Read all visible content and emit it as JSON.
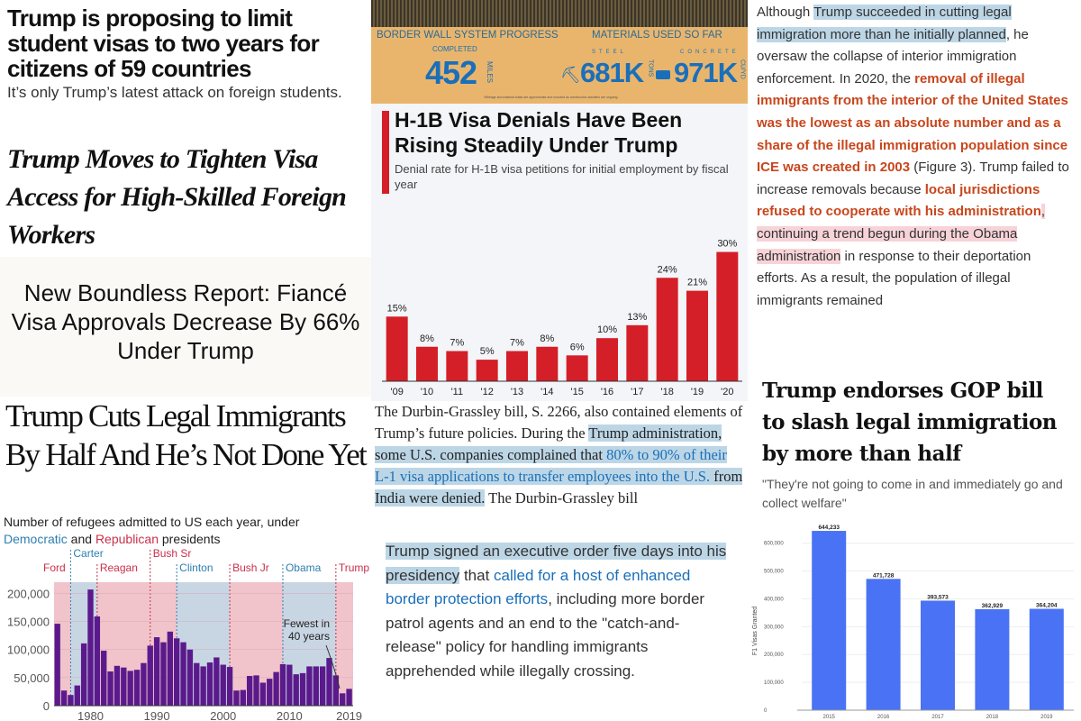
{
  "student_visas": {
    "headline": "Trump is proposing to limit student visas to two years for citizens of 59 countries",
    "sub": "It’s only Trump’s latest attack on foreign students."
  },
  "nyt": {
    "headline": "Trump Moves to Tighten Visa Access for High-Skilled Foreign Workers"
  },
  "boundless": {
    "headline": "New Boundless Report: Fiancé Visa Approvals Decrease By 66% Under Trump"
  },
  "cuts": {
    "headline": "Trump Cuts Legal Immigrants By Half And He’s Not Done Yet"
  },
  "border_wall": {
    "title": "BORDER WALL SYSTEM PROGRESS",
    "completed_label": "COMPLETED",
    "completed": "452",
    "miles": "MILES",
    "materials": "MATERIALS USED SO FAR",
    "steel_label": "STEEL",
    "steel": "681K",
    "tons": "TONS",
    "concrete_label": "CONCRETE",
    "concrete": "971K",
    "cuyd": "CU/YD",
    "footnote": "*Mileage and material totals are approximate and rounded as construction activities are ongoing."
  },
  "h1b": {
    "title": "H-1B Visa Denials Have Been Rising Steadily Under Trump",
    "subtitle": "Denial rate for H-1B visa petitions for initial employment by fiscal year"
  },
  "durbin": [
    {
      "t": "The Durbin-Grassley bill, S. 2266, also contained elements of Trump’s future policies. During the "
    },
    {
      "t": "Trump administration, some U.S. companies complained that ",
      "c": "hl"
    },
    {
      "t": "80% to 90% of their L-1 visa applications to transfer employees into the U.S.",
      "c": "hl lk"
    },
    {
      "t": " from India",
      "c": "hl"
    },
    {
      "t": " were denied.",
      "c": "hl"
    },
    {
      "t": " The Durbin-Grassley bill"
    }
  ],
  "eo": [
    {
      "t": "Trump signed an executive order five days into his presidency",
      "c": "hl"
    },
    {
      "t": " that "
    },
    {
      "t": "called for a host of enhanced border protection efforts",
      "c": "lk"
    },
    {
      "t": ", including more border patrol agents and an end to the \"catch-and-release\" policy for handling immigrants apprehended while illegally crossing."
    }
  ],
  "interior": [
    {
      "t": "Although "
    },
    {
      "t": "Trump succeeded in cutting legal immigration more than he initially planned",
      "c": "hl"
    },
    {
      "t": ", he oversaw the collapse of interior immigration enforcement. In 2020, the "
    },
    {
      "t": "removal of illegal immigrants from the interior of the United States was the lowest as an absolute number and as a share of the illegal immigration population since ICE was created in 2003",
      "c": "rb"
    },
    {
      "t": " (Figure 3). Trump failed to increase removals because "
    },
    {
      "t": "local jurisdictions refused to cooperate with his administration",
      "c": "rb"
    },
    {
      "t": ", continuing a trend begun during the Obama administration",
      "c": "hlp"
    },
    {
      "t": " in response to their deportation efforts. As a result, the population of illegal immigrants remained"
    }
  ],
  "gop": {
    "headline": "Trump endorses GOP bill to slash legal immigration by more than half",
    "quote": "\"They're not going to come in and immediately go and collect welfare\""
  },
  "refugee_caption": {
    "a": "Number of refugees admitted to US each year, under",
    "dem": "Democratic",
    "and": " and ",
    "rep": "Republican",
    "b": " presidents"
  },
  "chart_data": [
    {
      "type": "bar",
      "title": "Denial rate for H-1B visa petitions for initial employment by fiscal year",
      "categories": [
        "'09",
        "'10",
        "'11",
        "'12",
        "'13",
        "'14",
        "'15",
        "'16",
        "'17",
        "'18",
        "'19",
        "'20"
      ],
      "values": [
        15,
        8,
        7,
        5,
        7,
        8,
        6,
        10,
        13,
        24,
        21,
        30
      ],
      "labels": [
        "15%",
        "8%",
        "7%",
        "5%",
        "7%",
        "8%",
        "6%",
        "10%",
        "13%",
        "24%",
        "21%",
        "30%"
      ],
      "ylim": [
        0,
        32
      ],
      "color": "#d41f28"
    },
    {
      "type": "bar",
      "title": "Number of refugees admitted to US each year",
      "x": [
        1975,
        1976,
        1977,
        1978,
        1979,
        1980,
        1981,
        1982,
        1983,
        1984,
        1985,
        1986,
        1987,
        1988,
        1989,
        1990,
        1991,
        1992,
        1993,
        1994,
        1995,
        1996,
        1997,
        1998,
        1999,
        2000,
        2001,
        2002,
        2003,
        2004,
        2005,
        2006,
        2007,
        2008,
        2009,
        2010,
        2011,
        2012,
        2013,
        2014,
        2015,
        2016,
        2017,
        2018,
        2019
      ],
      "values": [
        146000,
        27000,
        19000,
        36000,
        111000,
        207000,
        159000,
        98000,
        61000,
        71000,
        68000,
        62000,
        64000,
        76000,
        107000,
        122000,
        113000,
        132000,
        120000,
        113000,
        100000,
        76000,
        70000,
        77000,
        86000,
        73000,
        69000,
        27000,
        28000,
        53000,
        54000,
        41000,
        48000,
        60000,
        74000,
        73000,
        56000,
        58000,
        70000,
        70000,
        70000,
        85000,
        54000,
        22000,
        30000
      ],
      "ylim": [
        0,
        220000
      ],
      "yticks": [
        "0",
        "50,000",
        "100,000",
        "150,000",
        "200,000"
      ],
      "xticks": [
        "1980",
        "1990",
        "2000",
        "2010",
        "2019"
      ],
      "presidents": [
        {
          "name": "Ford",
          "start": 1974.5,
          "party": "R"
        },
        {
          "name": "Carter",
          "start": 1977,
          "party": "D"
        },
        {
          "name": "Reagan",
          "start": 1981,
          "party": "R"
        },
        {
          "name": "Bush Sr",
          "start": 1989,
          "party": "R"
        },
        {
          "name": "Clinton",
          "start": 1993,
          "party": "D"
        },
        {
          "name": "Bush Jr",
          "start": 2001,
          "party": "R"
        },
        {
          "name": "Obama",
          "start": 2009,
          "party": "D"
        },
        {
          "name": "Trump",
          "start": 2017,
          "party": "R"
        }
      ],
      "annotation": "Fewest in 40 years",
      "color": "#5b1a8c"
    },
    {
      "type": "bar",
      "ylabel": "F1 Visas Granted",
      "categories": [
        "2015",
        "2016",
        "2017",
        "2018",
        "2019"
      ],
      "values": [
        644233,
        471728,
        393573,
        362929,
        364204
      ],
      "labels": [
        "644,233",
        "471,728",
        "393,573",
        "362,929",
        "364,204"
      ],
      "ylim": [
        0,
        680000
      ],
      "yticks": [
        "0",
        "100,000",
        "200,000",
        "300,000",
        "400,000",
        "500,000",
        "600,000"
      ],
      "color": "#4a72f5"
    }
  ]
}
